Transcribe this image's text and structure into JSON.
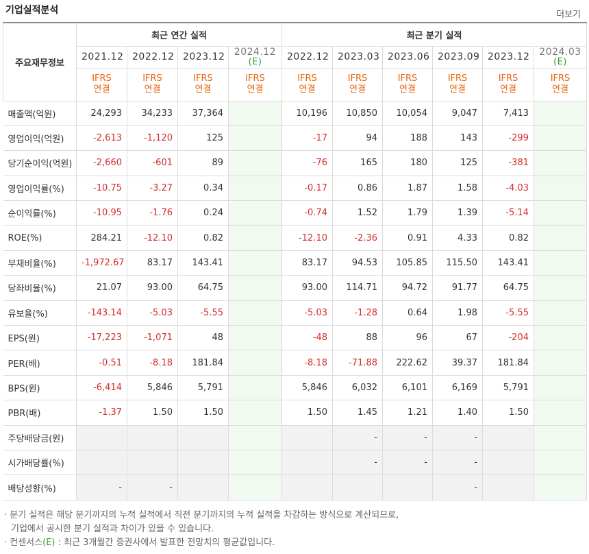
{
  "header": {
    "title": "기업실적분석",
    "more_label": "더보기"
  },
  "table": {
    "row_header_label": "주요재무정보",
    "groups": {
      "annual": "최근 연간 실적",
      "quarterly": "최근 분기 실적"
    },
    "periods": [
      {
        "label": "2021.12",
        "ifrs": "IFRS",
        "basis": "연결",
        "estimate": false
      },
      {
        "label": "2022.12",
        "ifrs": "IFRS",
        "basis": "연결",
        "estimate": false
      },
      {
        "label": "2023.12",
        "ifrs": "IFRS",
        "basis": "연결",
        "estimate": false
      },
      {
        "label": "2024.12",
        "est_mark": "(E)",
        "ifrs": "IFRS",
        "basis": "연결",
        "estimate": true
      },
      {
        "label": "2022.12",
        "ifrs": "IFRS",
        "basis": "연결",
        "estimate": false
      },
      {
        "label": "2023.03",
        "ifrs": "IFRS",
        "basis": "연결",
        "estimate": false
      },
      {
        "label": "2023.06",
        "ifrs": "IFRS",
        "basis": "연결",
        "estimate": false
      },
      {
        "label": "2023.09",
        "ifrs": "IFRS",
        "basis": "연결",
        "estimate": false
      },
      {
        "label": "2023.12",
        "ifrs": "IFRS",
        "basis": "연결",
        "estimate": false
      },
      {
        "label": "2024.03",
        "est_mark": "(E)",
        "ifrs": "IFRS",
        "basis": "연결",
        "estimate": true
      }
    ],
    "rows": [
      {
        "label": "매출액(억원)",
        "values": [
          "24,293",
          "34,233",
          "37,364",
          "",
          "10,196",
          "10,850",
          "10,054",
          "9,047",
          "7,413",
          ""
        ]
      },
      {
        "label": "영업이익(억원)",
        "values": [
          "-2,613",
          "-1,120",
          "125",
          "",
          "-17",
          "94",
          "188",
          "143",
          "-299",
          ""
        ]
      },
      {
        "label": "당기순이익(억원)",
        "values": [
          "-2,660",
          "-601",
          "89",
          "",
          "-76",
          "165",
          "180",
          "125",
          "-381",
          ""
        ]
      },
      {
        "label": "영업이익률(%)",
        "values": [
          "-10.75",
          "-3.27",
          "0.34",
          "",
          "-0.17",
          "0.86",
          "1.87",
          "1.58",
          "-4.03",
          ""
        ]
      },
      {
        "label": "순이익률(%)",
        "values": [
          "-10.95",
          "-1.76",
          "0.24",
          "",
          "-0.74",
          "1.52",
          "1.79",
          "1.39",
          "-5.14",
          ""
        ]
      },
      {
        "label": "ROE(%)",
        "values": [
          "284.21",
          "-12.10",
          "0.82",
          "",
          "-12.10",
          "-2.36",
          "0.91",
          "4.33",
          "0.82",
          ""
        ]
      },
      {
        "label": "부채비율(%)",
        "values": [
          "-1,972.67",
          "83.17",
          "143.41",
          "",
          "83.17",
          "94.53",
          "105.85",
          "115.50",
          "143.41",
          ""
        ]
      },
      {
        "label": "당좌비율(%)",
        "values": [
          "21.07",
          "93.00",
          "64.75",
          "",
          "93.00",
          "114.71",
          "94.72",
          "91.77",
          "64.75",
          ""
        ]
      },
      {
        "label": "유보율(%)",
        "values": [
          "-143.14",
          "-5.03",
          "-5.55",
          "",
          "-5.03",
          "-1.28",
          "0.64",
          "1.98",
          "-5.55",
          ""
        ]
      },
      {
        "label": "EPS(원)",
        "values": [
          "-17,223",
          "-1,071",
          "48",
          "",
          "-48",
          "88",
          "96",
          "67",
          "-204",
          ""
        ]
      },
      {
        "label": "PER(배)",
        "values": [
          "-0.51",
          "-8.18",
          "181.84",
          "",
          "-8.18",
          "-71.88",
          "222.62",
          "39.37",
          "181.84",
          ""
        ]
      },
      {
        "label": "BPS(원)",
        "values": [
          "-6,414",
          "5,846",
          "5,791",
          "",
          "5,846",
          "6,032",
          "6,101",
          "6,169",
          "5,791",
          ""
        ]
      },
      {
        "label": "PBR(배)",
        "values": [
          "-1.37",
          "1.50",
          "1.50",
          "",
          "1.50",
          "1.45",
          "1.21",
          "1.40",
          "1.50",
          ""
        ]
      },
      {
        "label": "주당배당금(원)",
        "values": [
          "",
          "",
          "",
          "",
          "",
          "-",
          "-",
          "-",
          "",
          ""
        ],
        "grey": true
      },
      {
        "label": "시가배당률(%)",
        "values": [
          "",
          "",
          "",
          "",
          "",
          "-",
          "-",
          "-",
          "",
          ""
        ],
        "grey": true
      },
      {
        "label": "배당성향(%)",
        "values": [
          "-",
          "-",
          "",
          "",
          "",
          "",
          "",
          "-",
          "",
          ""
        ],
        "grey": true
      }
    ]
  },
  "notes": {
    "line1": "· 분기 실적은 해당 분기까지의 누적 실적에서 직전 분기까지의 누적 실적을 차감하는 방식으로 계산되므로,",
    "line2": "기업에서 공시한 분기 실적과 차이가 있을 수 있습니다.",
    "line3_prefix": "· 컨센서스",
    "line3_mark": "(E)",
    "line3_suffix": " : 최근 3개월간 증권사에서 발표한 전망치의 평균값입니다."
  }
}
